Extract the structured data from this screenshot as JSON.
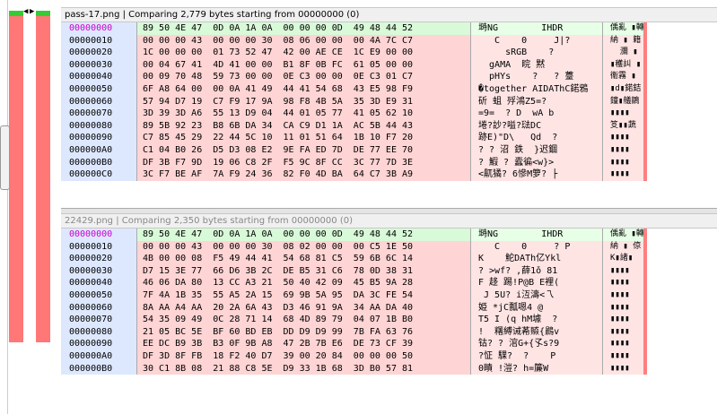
{
  "overview": {
    "left_arrow": "◀",
    "right_arrow": "▶"
  },
  "pane1": {
    "header": "pass-17.png | Comparing 2,779 bytes starting from 00000000 (0)",
    "rows": [
      {
        "addr": "00000000",
        "hex": "89 50 4E 47  0D 0A 1A 0A  00 00 00 0D  49 48 44 52",
        "txt": "塒NG        IHDR",
        "asc": "偊亂 ▮轉",
        "eq": true
      },
      {
        "addr": "00000010",
        "hex": "00 00 00 43  00 00 00 30  08 06 00 00  00 4A 7C C7",
        "txt": "   C    0     J|?",
        "asc": "納 ▮ 籍",
        "eq": false
      },
      {
        "addr": "00000020",
        "hex": "1C 00 00 00  01 73 52 47  42 00 AE CE  1C E9 00 00",
        "txt": "     sRGB    ?",
        "asc": "  瀰 ▮",
        "eq": false
      },
      {
        "addr": "00000030",
        "hex": "00 04 67 41  4D 41 00 00  B1 8F 0B FC  61 05 00 00",
        "txt": "  gAMA  睆 黙",
        "asc": "▮穫訆 ▮",
        "eq": false
      },
      {
        "addr": "00000040",
        "hex": "00 09 70 48  59 73 00 00  0E C3 00 00  0E C3 01 C7",
        "txt": "  pHYs    ?   ? 薹",
        "asc": "衞霧 ▮",
        "eq": false
      },
      {
        "addr": "00000050",
        "hex": "6F A8 64 00  00 0A 41 49  44 41 54 68  43 E5 98 F9",
        "txt": "�together AIDAThC鍩鴉",
        "asc": "▮d▮鍩銡",
        "eq": false
      },
      {
        "addr": "00000060",
        "hex": "57 94 D7 19  C7 F9 17 9A  98 F8 4B 5A  35 3D E9 31",
        "txt": "斫 蛆 殍鴻Z5=?",
        "asc": "鐘▮艤鶵",
        "eq": false
      },
      {
        "addr": "00000070",
        "hex": "3D 39 3D A6  55 13 D9 04  44 01 05 77  41 05 62 10",
        "txt": "=9=  ? D  wA b",
        "asc": "▮▮▮▮",
        "eq": false
      },
      {
        "addr": "00000080",
        "hex": "89 5B 92 23  B8 6B DA 34  CA C9 D1 1A  AC 5B 44 43",
        "txt": "埢?訬?嗌?琺DC",
        "asc": "笅▮▮蔬",
        "eq": false
      },
      {
        "addr": "00000090",
        "hex": "C7 85 45 29  22 44 5C 10  11 01 51 64  1B 10 F7 20",
        "txt": "跡E)\"D\\   Qd  ?",
        "asc": "▮▮▮▮",
        "eq": false
      },
      {
        "addr": "000000A0",
        "hex": "C1 04 B0 26  D5 D3 08 E2  9E FA ED 7D  DE 77 EE 70",
        "txt": "? ? 沼 鉄  }迟錮",
        "asc": "▮▮▮▮",
        "eq": false
      },
      {
        "addr": "000000B0",
        "hex": "DF 3B F7 9D  19 06 C8 2F  F5 9C 8F CC  3C 77 7D 3E",
        "txt": "? 鰕 ? 蠹徧<w}>",
        "asc": "▮▮▮▮",
        "eq": false
      },
      {
        "addr": "000000C0",
        "hex": "3C F7 BE AF  7A F9 24 36  82 F0 4D BA  64 C7 3B A9",
        "txt": "<鼿獝? 6慘M箩? ├",
        "asc": "▮▮▮▮",
        "eq": false
      }
    ]
  },
  "pane2": {
    "header": "22429.png | Comparing 2,350 bytes starting from 00000000 (0)",
    "rows": [
      {
        "addr": "00000000",
        "hex": "89 50 4E 47  0D 0A 1A 0A  00 00 00 0D  49 48 44 52",
        "txt": "塒NG        IHDR",
        "asc": "偊亂 ▮轉",
        "eq": true
      },
      {
        "addr": "00000010",
        "hex": "00 00 00 43  00 00 00 30  08 02 00 00  00 C5 1E 50",
        "txt": "   C    0     ? P",
        "asc": "納 ▮ 倞",
        "eq": false
      },
      {
        "addr": "00000020",
        "hex": "4B 00 00 08  F5 49 44 41  54 68 81 C5  59 6B 6C 14",
        "txt": "K    鮀DATh亿Ykl",
        "asc": "K▮諸▮",
        "eq": false
      },
      {
        "addr": "00000030",
        "hex": "D7 15 3E 77  66 D6 3B 2C  DE B5 31 C6  78 0D 38 31",
        "txt": "? >wf? ,薛1ǒ 81",
        "asc": "▮▮▮▮",
        "eq": false
      },
      {
        "addr": "00000040",
        "hex": "46 06 DA 80  13 CC A3 21  50 40 42 09  45 B5 9A 28",
        "txt": "F 趍 踢!P@B E裡(",
        "asc": "▮▮▮▮",
        "eq": false
      },
      {
        "addr": "00000050",
        "hex": "7F 4A 1B 35  55 A5 2A 15  69 9B 5A 95  DA 3C FE 54",
        "txt": " J 5U? i沍濤<乁",
        "asc": "▮▮▮▮",
        "eq": false
      },
      {
        "addr": "00000060",
        "hex": "8A AA A4 AA  20 2A 6A 43  D3 46 91 9A  34 AA DA 40",
        "txt": "姫 *jC瓢嗯4 @",
        "asc": "▮▮▮▮",
        "eq": false
      },
      {
        "addr": "00000070",
        "hex": "54 35 09 49  0C 28 71 14  68 4D 89 79  04 07 1B B0",
        "txt": "T5 I (q hM壉  ?",
        "asc": "▮▮▮▮",
        "eq": false
      },
      {
        "addr": "00000080",
        "hex": "21 05 BC 5E  BF 60 BD EB  DD D9 D9 99  7B FA 63 76",
        "txt": "!  糬縛诫莃贆{鷐v",
        "asc": "▮▮▮▮",
        "eq": false
      },
      {
        "addr": "00000090",
        "hex": "EE DC B9 3B  B3 0F 9B A8  47 2B 7B E6  DE 73 CF 39",
        "txt": "钴? ? 涫G+{孓s?9",
        "asc": "▮▮▮▮",
        "eq": false
      },
      {
        "addr": "000000A0",
        "hex": "DF 3D 8F FB  18 F2 40 D7  39 00 20 84  00 00 00 50",
        "txt": "?怔 騍?  ?    P",
        "asc": "▮▮▮▮",
        "eq": false
      },
      {
        "addr": "000000B0",
        "hex": "30 C1 8B 08  21 88 C8 5E  D9 33 1B 68  3D B0 57 81",
        "txt": "0瞔 !溰? h=簾W",
        "asc": "▮▮▮▮",
        "eq": false
      }
    ]
  }
}
